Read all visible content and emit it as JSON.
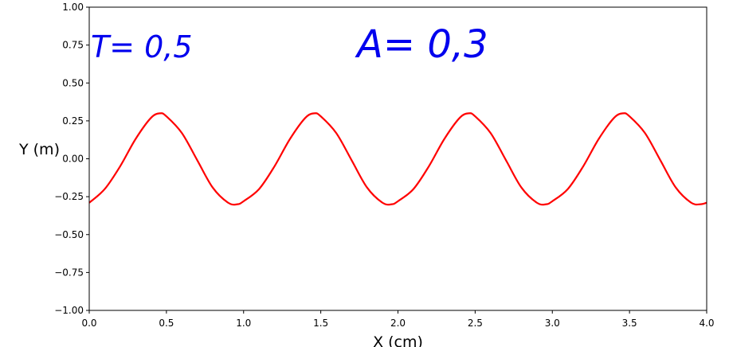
{
  "chart_data": {
    "type": "line",
    "xlabel": "X (cm)",
    "ylabel": "Y (m)",
    "xlim": [
      0.0,
      4.0
    ],
    "ylim": [
      -1.0,
      1.0
    ],
    "x_ticks": [
      "0.0",
      "0.5",
      "1.0",
      "1.5",
      "2.0",
      "2.5",
      "3.0",
      "3.5",
      "4.0"
    ],
    "y_ticks": [
      "1.00",
      "0.75",
      "0.50",
      "0.25",
      "0.00",
      "−0.25",
      "−0.50",
      "−0.75",
      "−1.00"
    ],
    "grid": false,
    "series": [
      {
        "color": "#ff0000",
        "amplitude": 0.3,
        "wavelength": 1.0,
        "x": [
          0.0,
          0.1,
          0.2,
          0.3,
          0.4,
          0.46,
          0.5,
          0.6,
          0.7,
          0.8,
          0.9,
          0.96,
          1.0,
          1.1,
          1.2,
          1.3,
          1.4,
          1.46,
          1.5,
          1.6,
          1.7,
          1.8,
          1.9,
          1.96,
          2.0,
          2.1,
          2.2,
          2.3,
          2.4,
          2.46,
          2.5,
          2.6,
          2.7,
          2.8,
          2.9,
          2.96,
          3.0,
          3.1,
          3.2,
          3.3,
          3.4,
          3.46,
          3.5,
          3.6,
          3.7,
          3.8,
          3.9,
          3.96,
          4.0
        ],
        "y": [
          -0.29,
          -0.2,
          -0.05,
          0.13,
          0.27,
          0.3,
          0.28,
          0.17,
          -0.01,
          -0.19,
          -0.29,
          -0.3,
          -0.28,
          -0.2,
          -0.05,
          0.13,
          0.27,
          0.3,
          0.28,
          0.17,
          -0.01,
          -0.19,
          -0.29,
          -0.3,
          -0.28,
          -0.2,
          -0.05,
          0.13,
          0.27,
          0.3,
          0.28,
          0.17,
          -0.01,
          -0.19,
          -0.29,
          -0.3,
          -0.28,
          -0.2,
          -0.05,
          0.13,
          0.27,
          0.3,
          0.28,
          0.17,
          -0.01,
          -0.19,
          -0.29,
          -0.3,
          -0.29
        ]
      }
    ],
    "annotations": [
      {
        "text": "T= 0,5",
        "color": "#0000ee"
      },
      {
        "text": "A= 0,3",
        "color": "#0000ee"
      }
    ]
  }
}
